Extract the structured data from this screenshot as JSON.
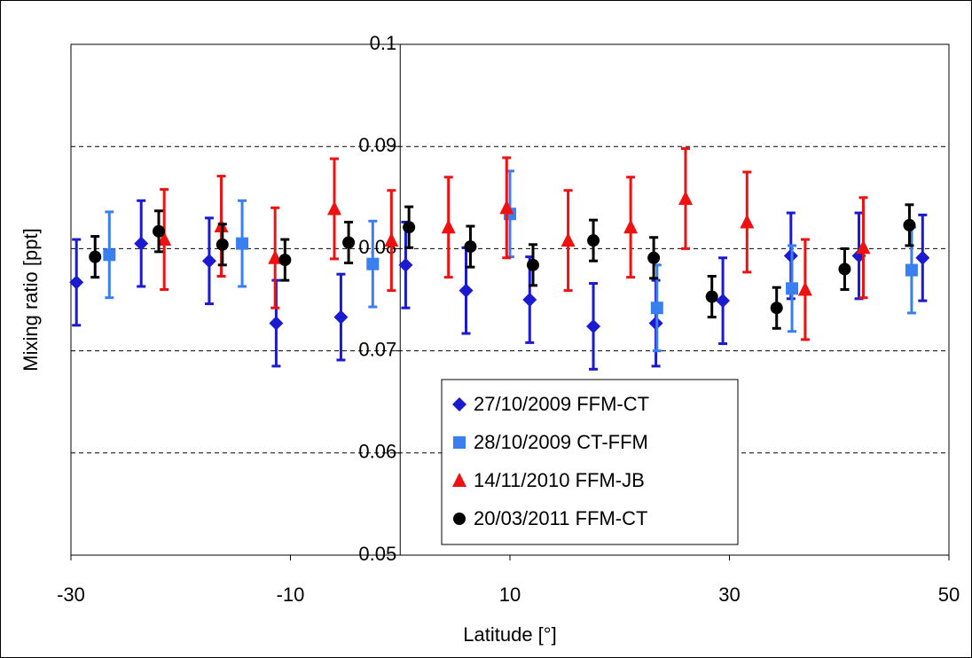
{
  "chart_data": {
    "type": "scatter",
    "x_label": "Latitude [°]",
    "y_label": "Mixing ratio [ppt]",
    "xlim": [
      -30,
      50
    ],
    "xticks": [
      -30,
      -10,
      10,
      30,
      50
    ],
    "ylim": [
      0.05,
      0.1
    ],
    "yticks": [
      0.05,
      0.06,
      0.07,
      0.08,
      0.09,
      0.1
    ],
    "grid": true,
    "legend": "bottom-center",
    "series": [
      {
        "name": "27/10/2009 FFM-CT",
        "color": "#1a1ad0",
        "marker": "diamond",
        "x": [
          -29.5,
          -23.6,
          -17.4,
          -11.3,
          -5.4,
          0.5,
          6.0,
          11.8,
          17.6,
          23.3,
          29.4,
          35.6,
          41.8,
          47.6
        ],
        "values": [
          0.0767,
          0.0805,
          0.0788,
          0.0727,
          0.0733,
          0.0784,
          0.0759,
          0.075,
          0.0724,
          0.0727,
          0.0749,
          0.0793,
          0.0793,
          0.0791
        ],
        "errors": [
          0.0042,
          0.0042,
          0.0042,
          0.0042,
          0.0042,
          0.0042,
          0.0042,
          0.0042,
          0.0042,
          0.0042,
          0.0042,
          0.0042,
          0.0042,
          0.0042
        ]
      },
      {
        "name": "28/10/2009 CT-FFM",
        "color": "#3a7ff0",
        "marker": "square",
        "x": [
          -26.5,
          -14.4,
          -2.5,
          10.0,
          23.4,
          35.7,
          46.6
        ],
        "values": [
          0.0794,
          0.0805,
          0.0785,
          0.0834,
          0.0742,
          0.0761,
          0.0779
        ],
        "errors": [
          0.0042,
          0.0042,
          0.0042,
          0.0042,
          0.0042,
          0.0042,
          0.0042
        ]
      },
      {
        "name": "14/11/2010 FFM-JB",
        "color": "#ee1111",
        "marker": "triangle",
        "x": [
          -21.5,
          -16.3,
          -11.4,
          -6.0,
          -0.8,
          4.4,
          9.7,
          15.3,
          21.0,
          26.0,
          31.6,
          36.9,
          42.2
        ],
        "values": [
          0.0809,
          0.0822,
          0.0791,
          0.0839,
          0.0808,
          0.0821,
          0.084,
          0.0808,
          0.0821,
          0.0849,
          0.0826,
          0.076,
          0.0801
        ],
        "errors": [
          0.0049,
          0.0049,
          0.0049,
          0.0049,
          0.0049,
          0.0049,
          0.0049,
          0.0049,
          0.0049,
          0.0049,
          0.0049,
          0.0049,
          0.0049
        ]
      },
      {
        "name": "20/03/2011 FFM-CT",
        "color": "#000000",
        "marker": "circle",
        "x": [
          -27.8,
          -22.0,
          -16.2,
          -10.5,
          -4.7,
          0.8,
          6.4,
          12.1,
          17.6,
          23.1,
          28.4,
          34.3,
          40.5,
          46.4
        ],
        "values": [
          0.0792,
          0.0817,
          0.0804,
          0.0789,
          0.0806,
          0.0821,
          0.0802,
          0.0784,
          0.0808,
          0.0791,
          0.0753,
          0.0742,
          0.078,
          0.0823
        ],
        "errors": [
          0.002,
          0.002,
          0.002,
          0.002,
          0.002,
          0.002,
          0.002,
          0.002,
          0.002,
          0.002,
          0.002,
          0.002,
          0.002,
          0.002
        ]
      }
    ]
  }
}
